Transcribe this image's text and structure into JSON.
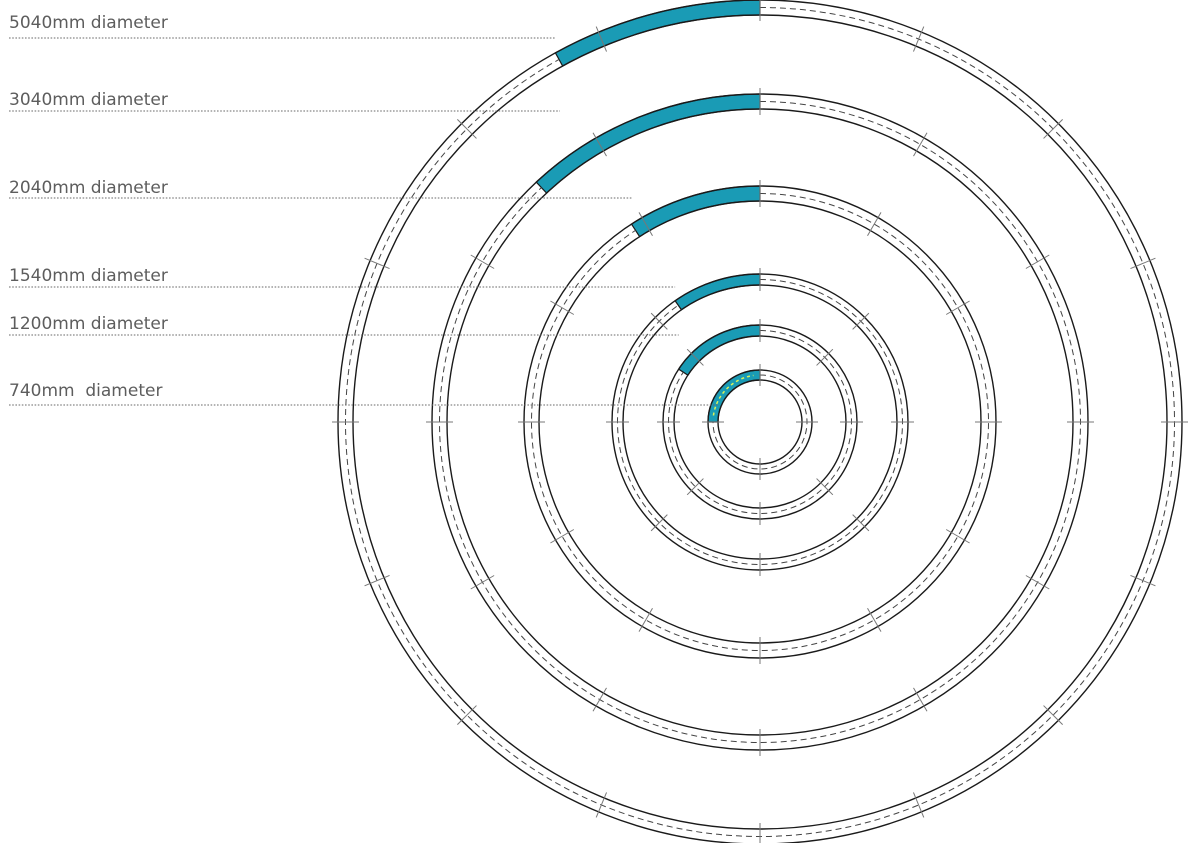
{
  "colors": {
    "segment_fill": "#1a9bb5",
    "segment_highlight": "#d9f25a",
    "ring_stroke": "#1a1a1a",
    "label_text": "#5d5d5d"
  },
  "rings": [
    {
      "label": "5040mm diameter",
      "diameter_mm": 5040,
      "segment_icon": "curved-segment"
    },
    {
      "label": "3040mm diameter",
      "diameter_mm": 3040,
      "segment_icon": "curved-segment"
    },
    {
      "label": "2040mm diameter",
      "diameter_mm": 2040,
      "segment_icon": "curved-segment"
    },
    {
      "label": "1540mm diameter",
      "diameter_mm": 1540,
      "segment_icon": "curved-segment"
    },
    {
      "label": "1200mm diameter",
      "diameter_mm": 1200,
      "segment_icon": "curved-segment"
    },
    {
      "label": "740mm  diameter",
      "diameter_mm": 740,
      "segment_icon": "curved-segment"
    }
  ]
}
